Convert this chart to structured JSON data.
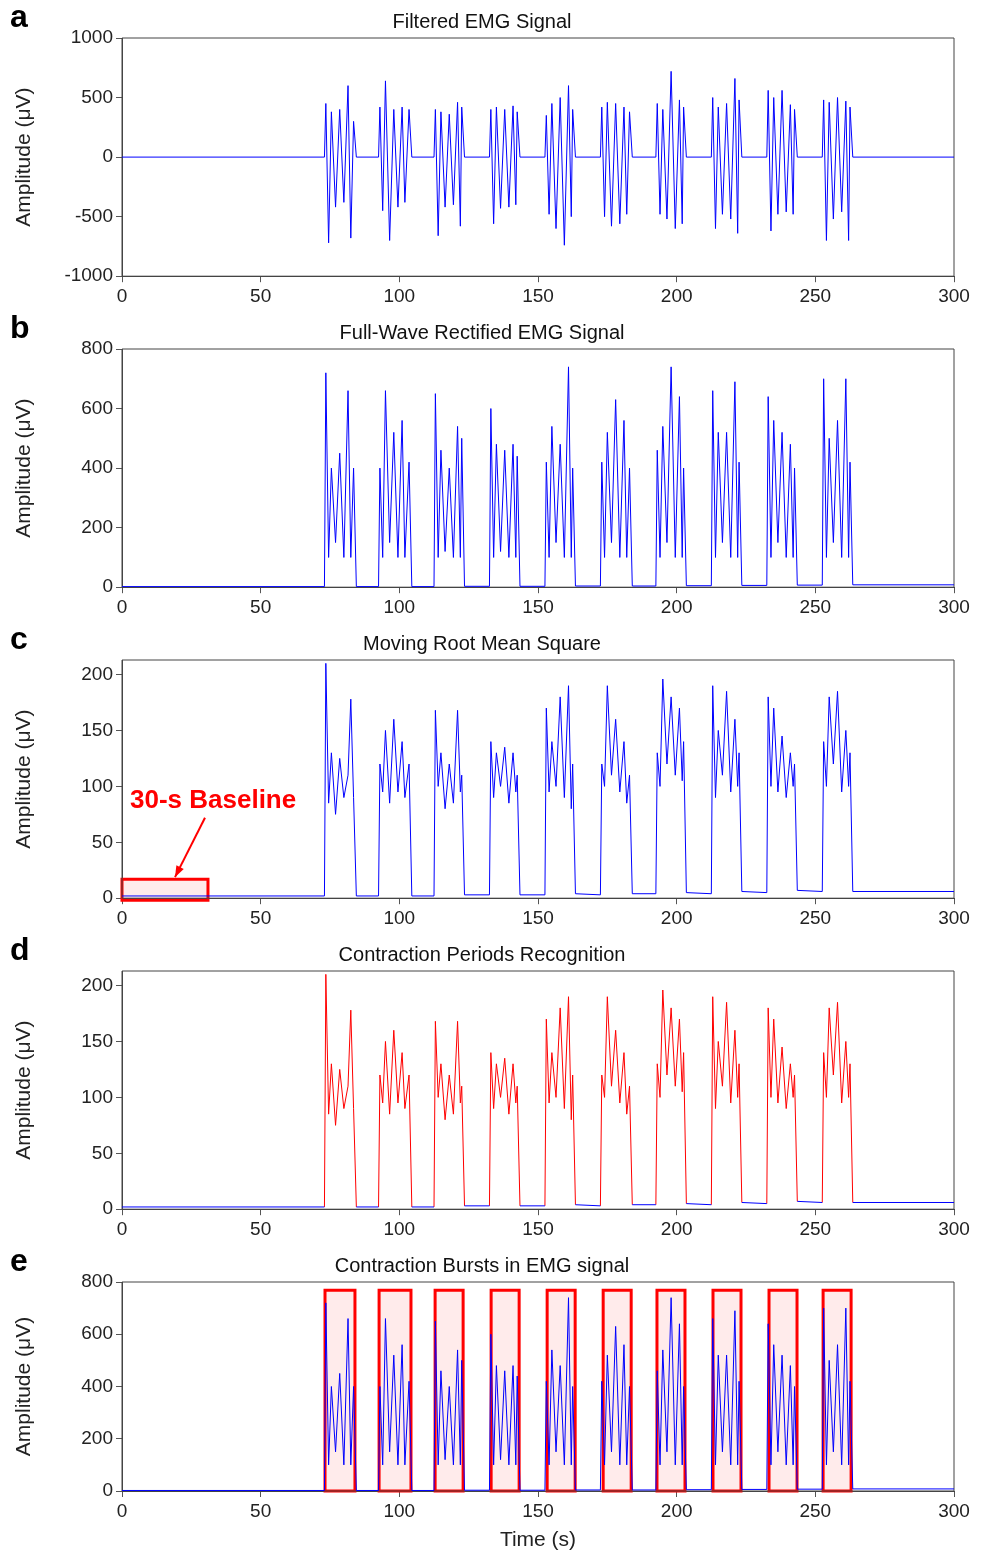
{
  "chart_data": [
    {
      "type": "line",
      "title": "Filtered EMG Signal",
      "ylabel": "Amplitude (μV)",
      "annotations": [
        "a"
      ],
      "xlim": [
        0,
        300
      ],
      "xticks": [
        0,
        50,
        100,
        150,
        200,
        250,
        300
      ],
      "ylim": [
        -1000,
        1000
      ],
      "yticks": [
        -1000,
        -500,
        0,
        500,
        1000
      ],
      "series": [
        {
          "color": "#0000ff",
          "x": [
            0,
            73,
            73.5,
            74.5,
            75.5,
            77,
            78.5,
            80,
            81.5,
            82.5,
            83.5,
            84.5,
            92.5,
            93,
            94,
            95,
            96.5,
            98,
            99.5,
            101,
            102,
            103.5,
            104.5,
            112.5,
            113,
            114,
            115,
            116.5,
            118,
            119.5,
            121,
            122,
            122.5,
            123.5,
            132.5,
            133,
            134,
            135,
            136.5,
            138,
            139.5,
            141,
            142,
            142.5,
            143.5,
            152.5,
            153,
            154,
            155,
            156.5,
            158,
            159.5,
            161,
            162,
            162.5,
            163.5,
            172.5,
            173,
            174,
            175,
            176.5,
            178,
            179.5,
            181,
            182,
            183,
            184,
            192.5,
            193,
            194,
            195,
            196.5,
            198,
            199.5,
            201,
            202,
            202.5,
            203.5,
            212.5,
            213,
            214,
            215,
            216.5,
            218,
            219.5,
            221,
            222,
            222.5,
            223.5,
            232.5,
            233,
            234,
            235,
            236.5,
            238,
            239.5,
            241,
            242,
            242.5,
            243.5,
            252.5,
            253,
            254,
            255,
            256.5,
            258,
            259.5,
            261,
            262,
            262.5,
            263.5,
            300
          ],
          "values": [
            0,
            0,
            450,
            -720,
            380,
            -420,
            400,
            -380,
            600,
            -680,
            300,
            0,
            0,
            420,
            -450,
            640,
            -700,
            400,
            -420,
            420,
            -380,
            400,
            0,
            0,
            400,
            -660,
            380,
            -420,
            360,
            -400,
            460,
            -580,
            420,
            0,
            0,
            400,
            -560,
            420,
            -430,
            400,
            -420,
            430,
            -400,
            380,
            0,
            0,
            350,
            -480,
            450,
            -600,
            500,
            -740,
            600,
            -500,
            400,
            0,
            0,
            420,
            -500,
            460,
            -580,
            450,
            -560,
            420,
            -480,
            380,
            0,
            0,
            450,
            -480,
            400,
            -520,
            720,
            -600,
            480,
            -560,
            420,
            0,
            0,
            500,
            -600,
            420,
            -480,
            450,
            -520,
            660,
            -640,
            480,
            0,
            0,
            560,
            -620,
            500,
            -480,
            560,
            -460,
            440,
            -480,
            400,
            0,
            0,
            480,
            -700,
            460,
            -520,
            500,
            -460,
            470,
            -700,
            420,
            0,
            0
          ]
        }
      ]
    },
    {
      "type": "line",
      "title": "Full-Wave Rectified EMG Signal",
      "ylabel": "Amplitude (μV)",
      "annotations": [
        "b"
      ],
      "xlim": [
        0,
        300
      ],
      "xticks": [
        0,
        50,
        100,
        150,
        200,
        250,
        300
      ],
      "ylim": [
        0,
        800
      ],
      "yticks": [
        0,
        200,
        400,
        600,
        800
      ],
      "series": [
        {
          "color": "#0000ff",
          "x": [
            0,
            73,
            73.5,
            74.5,
            75.5,
            77,
            78.5,
            80,
            81.5,
            82.5,
            83.5,
            84.5,
            92.5,
            93,
            94,
            95,
            96.5,
            98,
            99.5,
            101,
            102,
            103.5,
            104.5,
            112.5,
            113,
            114,
            115,
            116.5,
            118,
            119.5,
            121,
            122,
            122.5,
            123.5,
            132.5,
            133,
            134,
            135,
            136.5,
            138,
            139.5,
            141,
            142,
            142.5,
            143.5,
            152.5,
            153,
            154,
            155,
            156.5,
            158,
            159.5,
            161,
            162,
            162.5,
            163.5,
            172.5,
            173,
            174,
            175,
            176.5,
            178,
            179.5,
            181,
            182,
            183,
            184,
            192.5,
            193,
            194,
            195,
            196.5,
            198,
            199.5,
            201,
            202,
            202.5,
            203.5,
            212.5,
            213,
            214,
            215,
            216.5,
            218,
            219.5,
            221,
            222,
            222.5,
            223.5,
            232.5,
            233,
            234,
            235,
            236.5,
            238,
            239.5,
            241,
            242,
            242.5,
            243.5,
            252.5,
            253,
            254,
            255,
            256.5,
            258,
            259.5,
            261,
            262,
            262.5,
            263.5,
            300
          ],
          "values": [
            2,
            2,
            720,
            100,
            400,
            150,
            450,
            100,
            660,
            100,
            400,
            2,
            2,
            400,
            100,
            660,
            150,
            520,
            100,
            560,
            100,
            420,
            2,
            2,
            650,
            100,
            460,
            120,
            400,
            100,
            540,
            100,
            500,
            3,
            3,
            600,
            100,
            480,
            120,
            460,
            100,
            480,
            100,
            440,
            3,
            3,
            420,
            100,
            540,
            150,
            480,
            100,
            740,
            100,
            400,
            4,
            4,
            420,
            100,
            520,
            150,
            630,
            100,
            560,
            100,
            400,
            4,
            4,
            460,
            100,
            540,
            150,
            740,
            100,
            640,
            100,
            400,
            5,
            5,
            660,
            100,
            520,
            150,
            520,
            100,
            690,
            100,
            420,
            6,
            6,
            640,
            100,
            560,
            150,
            520,
            100,
            480,
            100,
            400,
            7,
            7,
            700,
            100,
            500,
            150,
            560,
            100,
            700,
            100,
            420,
            8,
            8
          ]
        }
      ]
    },
    {
      "type": "line",
      "title": "Moving Root Mean Square",
      "ylabel": "Amplitude (μV)",
      "annotations": [
        "c"
      ],
      "xlim": [
        0,
        300
      ],
      "xticks": [
        0,
        50,
        100,
        150,
        200,
        250,
        300
      ],
      "ylim": [
        0,
        213
      ],
      "yticks": [
        0,
        50,
        100,
        150,
        200
      ],
      "bands": [
        {
          "axis": "x",
          "from": 0,
          "to": 31,
          "label": "30-s Baseline",
          "color": "#ff0000"
        }
      ],
      "series": [
        {
          "color": "#0000ff",
          "x": [
            0,
            73,
            73.5,
            74.5,
            75.5,
            77,
            78.5,
            80,
            81.5,
            82.5,
            83.5,
            84.5,
            92.5,
            93,
            94,
            95,
            96.5,
            98,
            99.5,
            101,
            102,
            103.5,
            104.5,
            112.5,
            113,
            114,
            115,
            116.5,
            118,
            119.5,
            121,
            122,
            122.5,
            123.5,
            132.5,
            133,
            134,
            135,
            136.5,
            138,
            139.5,
            141,
            142,
            142.5,
            143.5,
            152.5,
            153,
            154,
            155,
            156.5,
            158,
            159.5,
            161,
            162,
            162.5,
            163.5,
            172.5,
            173,
            174,
            175,
            176.5,
            178,
            179.5,
            181,
            182,
            183,
            184,
            192.5,
            193,
            194,
            195,
            196.5,
            198,
            199.5,
            201,
            202,
            202.5,
            203.5,
            212.5,
            213,
            214,
            215,
            216.5,
            218,
            219.5,
            221,
            222,
            222.5,
            223.5,
            232.5,
            233,
            234,
            235,
            236.5,
            238,
            239.5,
            241,
            242,
            242.5,
            243.5,
            252.5,
            253,
            254,
            255,
            256.5,
            258,
            259.5,
            261,
            262,
            262.5,
            263.5,
            300
          ],
          "values": [
            2,
            2,
            210,
            85,
            130,
            75,
            125,
            90,
            110,
            178,
            90,
            2,
            2,
            120,
            95,
            150,
            85,
            160,
            95,
            140,
            90,
            120,
            2,
            2,
            168,
            100,
            130,
            80,
            120,
            85,
            168,
            95,
            110,
            3,
            3,
            140,
            90,
            130,
            100,
            135,
            85,
            130,
            95,
            110,
            3,
            3,
            170,
            95,
            140,
            100,
            180,
            90,
            190,
            80,
            120,
            4,
            3,
            120,
            100,
            190,
            110,
            160,
            95,
            140,
            85,
            110,
            4,
            4,
            130,
            100,
            196,
            120,
            180,
            110,
            170,
            105,
            140,
            5,
            4,
            190,
            90,
            150,
            110,
            185,
            95,
            160,
            100,
            130,
            6,
            5,
            180,
            100,
            170,
            95,
            145,
            90,
            130,
            100,
            120,
            7,
            6,
            140,
            100,
            180,
            120,
            185,
            95,
            150,
            100,
            130,
            6,
            6
          ]
        }
      ]
    },
    {
      "type": "line",
      "title": "Contraction Periods Recognition",
      "ylabel": "Amplitude (μV)",
      "annotations": [
        "d"
      ],
      "xlim": [
        0,
        300
      ],
      "xticks": [
        0,
        50,
        100,
        150,
        200,
        250,
        300
      ],
      "ylim": [
        0,
        213
      ],
      "yticks": [
        0,
        50,
        100,
        150,
        200
      ],
      "series": [
        {
          "color": "#0000ff",
          "x": [
            0,
            73,
            73.5,
            74.5,
            75.5,
            77,
            78.5,
            80,
            81.5,
            82.5,
            83.5,
            84.5,
            92.5,
            93,
            94,
            95,
            96.5,
            98,
            99.5,
            101,
            102,
            103.5,
            104.5,
            112.5,
            113,
            114,
            115,
            116.5,
            118,
            119.5,
            121,
            122,
            122.5,
            123.5,
            132.5,
            133,
            134,
            135,
            136.5,
            138,
            139.5,
            141,
            142,
            142.5,
            143.5,
            152.5,
            153,
            154,
            155,
            156.5,
            158,
            159.5,
            161,
            162,
            162.5,
            163.5,
            172.5,
            173,
            174,
            175,
            176.5,
            178,
            179.5,
            181,
            182,
            183,
            184,
            192.5,
            193,
            194,
            195,
            196.5,
            198,
            199.5,
            201,
            202,
            202.5,
            203.5,
            212.5,
            213,
            214,
            215,
            216.5,
            218,
            219.5,
            221,
            222,
            222.5,
            223.5,
            232.5,
            233,
            234,
            235,
            236.5,
            238,
            239.5,
            241,
            242,
            242.5,
            243.5,
            252.5,
            253,
            254,
            255,
            256.5,
            258,
            259.5,
            261,
            262,
            262.5,
            263.5,
            300
          ],
          "values": [
            2,
            2,
            null,
            null,
            null,
            null,
            null,
            null,
            null,
            null,
            null,
            2,
            2,
            null,
            null,
            null,
            null,
            null,
            null,
            null,
            null,
            null,
            2,
            2,
            null,
            null,
            null,
            null,
            null,
            null,
            null,
            null,
            null,
            3,
            3,
            null,
            null,
            null,
            null,
            null,
            null,
            null,
            null,
            null,
            3,
            3,
            null,
            null,
            null,
            null,
            null,
            null,
            null,
            null,
            null,
            4,
            3,
            null,
            null,
            null,
            null,
            null,
            null,
            null,
            null,
            null,
            4,
            4,
            null,
            null,
            null,
            null,
            null,
            null,
            null,
            null,
            null,
            5,
            4,
            null,
            null,
            null,
            null,
            null,
            null,
            null,
            null,
            null,
            6,
            5,
            null,
            null,
            null,
            null,
            null,
            null,
            null,
            null,
            null,
            7,
            6,
            null,
            null,
            null,
            null,
            null,
            null,
            null,
            null,
            null,
            6,
            6
          ]
        },
        {
          "color": "#ff0000",
          "x": [
            73,
            73.5,
            74.5,
            75.5,
            77,
            78.5,
            80,
            81.5,
            82.5,
            83.5,
            84.5
          ],
          "values": [
            2,
            210,
            85,
            130,
            75,
            125,
            90,
            110,
            178,
            90,
            2
          ]
        },
        {
          "color": "#ff0000",
          "x": [
            92.5,
            93,
            94,
            95,
            96.5,
            98,
            99.5,
            101,
            102,
            103.5,
            104.5
          ],
          "values": [
            2,
            120,
            95,
            150,
            85,
            160,
            95,
            140,
            90,
            120,
            2
          ]
        },
        {
          "color": "#ff0000",
          "x": [
            112.5,
            113,
            114,
            115,
            116.5,
            118,
            119.5,
            121,
            122,
            122.5,
            123.5
          ],
          "values": [
            2,
            168,
            100,
            130,
            80,
            120,
            85,
            168,
            95,
            110,
            3
          ]
        },
        {
          "color": "#ff0000",
          "x": [
            132.5,
            133,
            134,
            135,
            136.5,
            138,
            139.5,
            141,
            142,
            142.5,
            143.5
          ],
          "values": [
            3,
            140,
            90,
            130,
            100,
            135,
            85,
            130,
            95,
            110,
            3
          ]
        },
        {
          "color": "#ff0000",
          "x": [
            152.5,
            153,
            154,
            155,
            156.5,
            158,
            159.5,
            161,
            162,
            162.5,
            163.5
          ],
          "values": [
            3,
            170,
            95,
            140,
            100,
            180,
            90,
            190,
            80,
            120,
            4
          ]
        },
        {
          "color": "#ff0000",
          "x": [
            172.5,
            173,
            174,
            175,
            176.5,
            178,
            179.5,
            181,
            182,
            183,
            184
          ],
          "values": [
            3,
            120,
            100,
            190,
            110,
            160,
            95,
            140,
            85,
            110,
            4
          ]
        },
        {
          "color": "#ff0000",
          "x": [
            192.5,
            193,
            194,
            195,
            196.5,
            198,
            199.5,
            201,
            202,
            202.5,
            203.5
          ],
          "values": [
            4,
            130,
            100,
            196,
            120,
            180,
            110,
            170,
            105,
            140,
            5
          ]
        },
        {
          "color": "#ff0000",
          "x": [
            212.5,
            213,
            214,
            215,
            216.5,
            218,
            219.5,
            221,
            222,
            222.5,
            223.5
          ],
          "values": [
            4,
            190,
            90,
            150,
            110,
            185,
            95,
            160,
            100,
            130,
            6
          ]
        },
        {
          "color": "#ff0000",
          "x": [
            232.5,
            233,
            234,
            235,
            236.5,
            238,
            239.5,
            241,
            242,
            242.5,
            243.5
          ],
          "values": [
            5,
            180,
            100,
            170,
            95,
            145,
            90,
            130,
            100,
            120,
            7
          ]
        },
        {
          "color": "#ff0000",
          "x": [
            252.5,
            253,
            254,
            255,
            256.5,
            258,
            259.5,
            261,
            262,
            262.5,
            263.5
          ],
          "values": [
            6,
            140,
            100,
            180,
            120,
            185,
            95,
            150,
            100,
            130,
            6
          ]
        }
      ]
    },
    {
      "type": "line",
      "title": "Contraction Bursts in EMG signal",
      "xlabel": "Time (s)",
      "ylabel": "Amplitude (μV)",
      "annotations": [
        "e"
      ],
      "xlim": [
        0,
        300
      ],
      "xticks": [
        0,
        50,
        100,
        150,
        200,
        250,
        300
      ],
      "ylim": [
        0,
        800
      ],
      "yticks": [
        0,
        200,
        400,
        600,
        800
      ],
      "bands": [
        {
          "axis": "x",
          "from": 73.2,
          "to": 84,
          "color": "#ff0000"
        },
        {
          "axis": "x",
          "from": 92.7,
          "to": 104.2,
          "color": "#ff0000"
        },
        {
          "axis": "x",
          "from": 112.9,
          "to": 123,
          "color": "#ff0000"
        },
        {
          "axis": "x",
          "from": 133.1,
          "to": 143.2,
          "color": "#ff0000"
        },
        {
          "axis": "x",
          "from": 153.3,
          "to": 163.4,
          "color": "#ff0000"
        },
        {
          "axis": "x",
          "from": 173.5,
          "to": 183.6,
          "color": "#ff0000"
        },
        {
          "axis": "x",
          "from": 192.9,
          "to": 203,
          "color": "#ff0000"
        },
        {
          "axis": "x",
          "from": 213.1,
          "to": 223.2,
          "color": "#ff0000"
        },
        {
          "axis": "x",
          "from": 233.3,
          "to": 243.4,
          "color": "#ff0000"
        },
        {
          "axis": "x",
          "from": 252.8,
          "to": 262.9,
          "color": "#ff0000"
        }
      ],
      "series": [
        {
          "color": "#0000ff",
          "x": [
            0,
            73,
            73.5,
            74.5,
            75.5,
            77,
            78.5,
            80,
            81.5,
            82.5,
            83.5,
            84.5,
            92.5,
            93,
            94,
            95,
            96.5,
            98,
            99.5,
            101,
            102,
            103.5,
            104.5,
            112.5,
            113,
            114,
            115,
            116.5,
            118,
            119.5,
            121,
            122,
            122.5,
            123.5,
            132.5,
            133,
            134,
            135,
            136.5,
            138,
            139.5,
            141,
            142,
            142.5,
            143.5,
            152.5,
            153,
            154,
            155,
            156.5,
            158,
            159.5,
            161,
            162,
            162.5,
            163.5,
            172.5,
            173,
            174,
            175,
            176.5,
            178,
            179.5,
            181,
            182,
            183,
            184,
            192.5,
            193,
            194,
            195,
            196.5,
            198,
            199.5,
            201,
            202,
            202.5,
            203.5,
            212.5,
            213,
            214,
            215,
            216.5,
            218,
            219.5,
            221,
            222,
            222.5,
            223.5,
            232.5,
            233,
            234,
            235,
            236.5,
            238,
            239.5,
            241,
            242,
            242.5,
            243.5,
            252.5,
            253,
            254,
            255,
            256.5,
            258,
            259.5,
            261,
            262,
            262.5,
            263.5,
            300
          ],
          "values": [
            2,
            2,
            720,
            100,
            400,
            150,
            450,
            100,
            660,
            100,
            400,
            2,
            2,
            400,
            100,
            660,
            150,
            520,
            100,
            560,
            100,
            420,
            2,
            2,
            650,
            100,
            460,
            120,
            400,
            100,
            540,
            100,
            500,
            3,
            3,
            600,
            100,
            480,
            120,
            460,
            100,
            480,
            100,
            440,
            3,
            3,
            420,
            100,
            540,
            150,
            480,
            100,
            740,
            100,
            400,
            4,
            4,
            420,
            100,
            520,
            150,
            630,
            100,
            560,
            100,
            400,
            4,
            4,
            460,
            100,
            540,
            150,
            740,
            100,
            640,
            100,
            400,
            5,
            5,
            660,
            100,
            520,
            150,
            520,
            100,
            690,
            100,
            420,
            6,
            6,
            640,
            100,
            560,
            150,
            520,
            100,
            480,
            100,
            400,
            7,
            7,
            700,
            100,
            500,
            150,
            560,
            100,
            700,
            100,
            420,
            8,
            8
          ]
        }
      ]
    }
  ]
}
